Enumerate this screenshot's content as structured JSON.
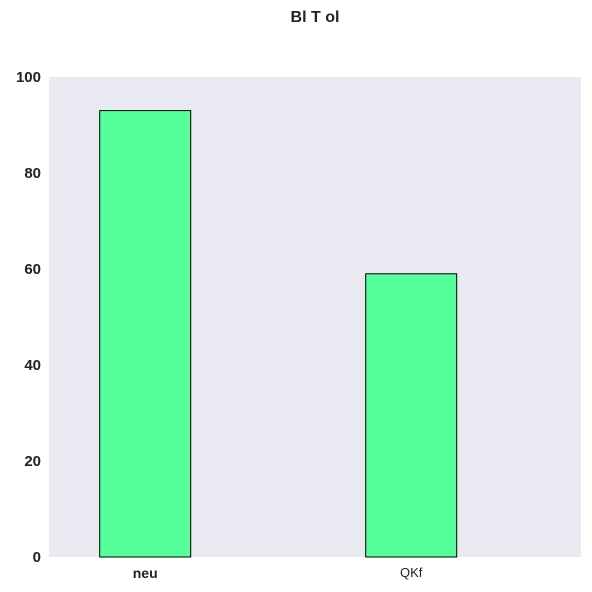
{
  "chart_data": {
    "type": "bar",
    "title": "Bl T ol",
    "categories": [
      "neu",
      "QKf"
    ],
    "category_label_styles": [
      "bold",
      "normal"
    ],
    "values": [
      93,
      59
    ],
    "ylim": [
      0,
      100
    ],
    "yticks": [
      0,
      20,
      40,
      60,
      80,
      100
    ],
    "xlabel": "",
    "ylabel": "",
    "grid": false,
    "colors": {
      "bar_fill": "#55ff99",
      "bar_edge": "#000000",
      "plot_background": "#e9e9f2"
    }
  }
}
